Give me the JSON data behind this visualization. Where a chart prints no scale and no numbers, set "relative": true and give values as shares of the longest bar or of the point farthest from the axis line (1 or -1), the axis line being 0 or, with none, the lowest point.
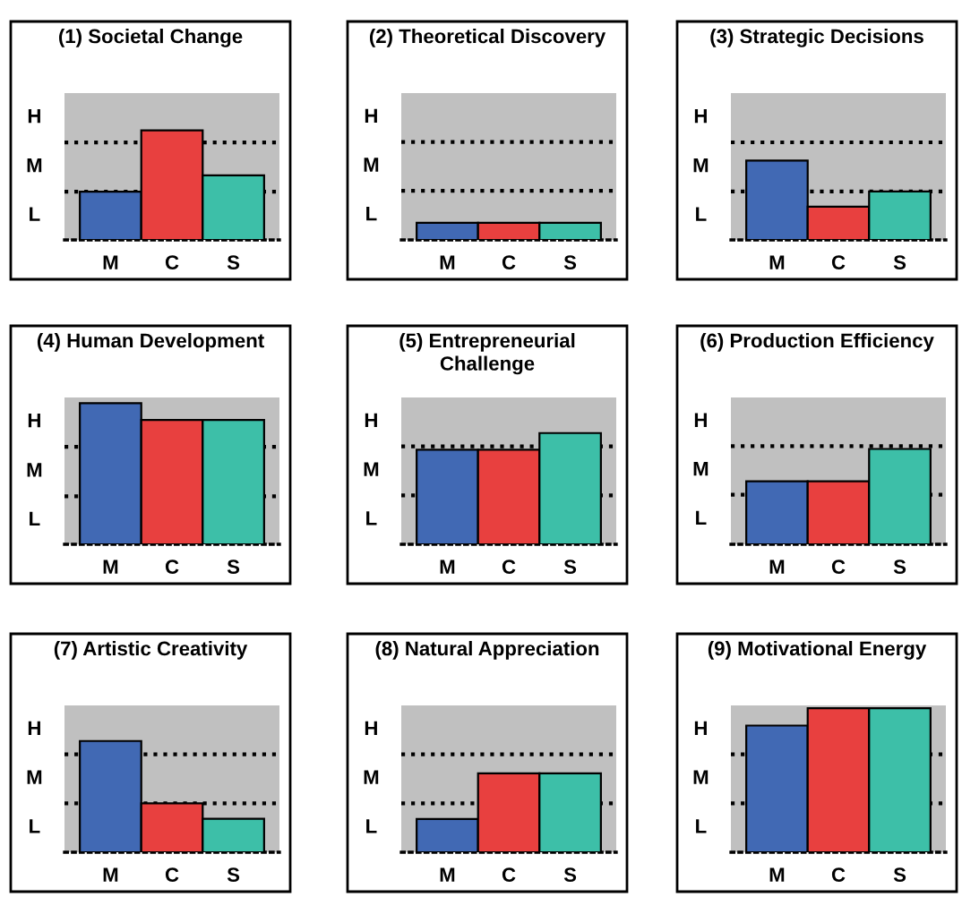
{
  "chart_data": [
    {
      "type": "bar",
      "relative": true,
      "title": "(1) Societal Change",
      "categories": [
        "M",
        "C",
        "S"
      ],
      "values": [
        0.44,
        1,
        0.59
      ],
      "colors": [
        "#4169b4",
        "#e8403f",
        "#3dbfa8"
      ],
      "annotations": [
        "L",
        "M",
        "H"
      ],
      "ref_lines": [
        {
          "axis": "y",
          "value": 0.44,
          "color": "#000000",
          "line_style": "dotted"
        },
        {
          "axis": "y",
          "value": 0.89,
          "color": "#000000",
          "line_style": "dotted"
        }
      ]
    },
    {
      "type": "bar",
      "relative": true,
      "title": "(2) Theoretical Discovery",
      "categories": [
        "M",
        "C",
        "S"
      ],
      "values": [
        1,
        1,
        1
      ],
      "colors": [
        "#4169b4",
        "#e8403f",
        "#3dbfa8"
      ],
      "annotations": [
        "L",
        "M",
        "H"
      ],
      "ref_lines": [
        {
          "axis": "y",
          "value": 2.86,
          "color": "#000000",
          "line_style": "dotted"
        },
        {
          "axis": "y",
          "value": 5.71,
          "color": "#000000",
          "line_style": "dotted"
        }
      ]
    },
    {
      "type": "bar",
      "relative": true,
      "title": "(3) Strategic Decisions",
      "categories": [
        "M",
        "C",
        "S"
      ],
      "values": [
        1,
        0.42,
        0.61
      ],
      "colors": [
        "#4169b4",
        "#e8403f",
        "#3dbfa8"
      ],
      "annotations": [
        "L",
        "M",
        "H"
      ],
      "ref_lines": [
        {
          "axis": "y",
          "value": 0.61,
          "color": "#000000",
          "line_style": "dotted"
        },
        {
          "axis": "y",
          "value": 1.23,
          "color": "#000000",
          "line_style": "dotted"
        }
      ]
    },
    {
      "type": "bar",
      "relative": true,
      "title": "(4) Human Development",
      "categories": [
        "M",
        "C",
        "S"
      ],
      "values": [
        1,
        0.88,
        0.88
      ],
      "colors": [
        "#4169b4",
        "#e8403f",
        "#3dbfa8"
      ],
      "annotations": [
        "L",
        "M",
        "H"
      ],
      "ref_lines": [
        {
          "axis": "y",
          "value": 0.34,
          "color": "#000000",
          "line_style": "dotted"
        },
        {
          "axis": "y",
          "value": 0.69,
          "color": "#000000",
          "line_style": "dotted"
        }
      ]
    },
    {
      "type": "bar",
      "relative": true,
      "title": "(5) Entrepreneurial\nChallenge",
      "categories": [
        "M",
        "C",
        "S"
      ],
      "values": [
        0.85,
        0.85,
        1
      ],
      "colors": [
        "#4169b4",
        "#e8403f",
        "#3dbfa8"
      ],
      "annotations": [
        "L",
        "M",
        "H"
      ],
      "ref_lines": [
        {
          "axis": "y",
          "value": 0.44,
          "color": "#000000",
          "line_style": "dotted"
        },
        {
          "axis": "y",
          "value": 0.88,
          "color": "#000000",
          "line_style": "dotted"
        }
      ]
    },
    {
      "type": "bar",
      "relative": true,
      "title": "(6) Production Efficiency",
      "categories": [
        "M",
        "C",
        "S"
      ],
      "values": [
        0.66,
        0.66,
        1
      ],
      "colors": [
        "#4169b4",
        "#e8403f",
        "#3dbfa8"
      ],
      "annotations": [
        "L",
        "M",
        "H"
      ],
      "ref_lines": [
        {
          "axis": "y",
          "value": 0.52,
          "color": "#000000",
          "line_style": "dotted"
        },
        {
          "axis": "y",
          "value": 1.03,
          "color": "#000000",
          "line_style": "dotted"
        }
      ]
    },
    {
      "type": "bar",
      "relative": true,
      "title": "(7) Artistic Creativity",
      "categories": [
        "M",
        "C",
        "S"
      ],
      "values": [
        1,
        0.44,
        0.3
      ],
      "colors": [
        "#4169b4",
        "#e8403f",
        "#3dbfa8"
      ],
      "annotations": [
        "L",
        "M",
        "H"
      ],
      "ref_lines": [
        {
          "axis": "y",
          "value": 0.44,
          "color": "#000000",
          "line_style": "dotted"
        },
        {
          "axis": "y",
          "value": 0.88,
          "color": "#000000",
          "line_style": "dotted"
        }
      ]
    },
    {
      "type": "bar",
      "relative": true,
      "title": "(8) Natural Appreciation",
      "categories": [
        "M",
        "C",
        "S"
      ],
      "values": [
        0.42,
        1,
        1
      ],
      "colors": [
        "#4169b4",
        "#e8403f",
        "#3dbfa8"
      ],
      "annotations": [
        "L",
        "M",
        "H"
      ],
      "ref_lines": [
        {
          "axis": "y",
          "value": 0.62,
          "color": "#000000",
          "line_style": "dotted"
        },
        {
          "axis": "y",
          "value": 1.24,
          "color": "#000000",
          "line_style": "dotted"
        }
      ]
    },
    {
      "type": "bar",
      "relative": true,
      "title": "(9) Motivational Energy",
      "categories": [
        "M",
        "C",
        "S"
      ],
      "values": [
        0.88,
        1,
        1
      ],
      "colors": [
        "#4169b4",
        "#e8403f",
        "#3dbfa8"
      ],
      "annotations": [
        "L",
        "M",
        "H"
      ],
      "ref_lines": [
        {
          "axis": "y",
          "value": 0.34,
          "color": "#000000",
          "line_style": "dotted"
        },
        {
          "axis": "y",
          "value": 0.68,
          "color": "#000000",
          "line_style": "dotted"
        }
      ]
    }
  ]
}
